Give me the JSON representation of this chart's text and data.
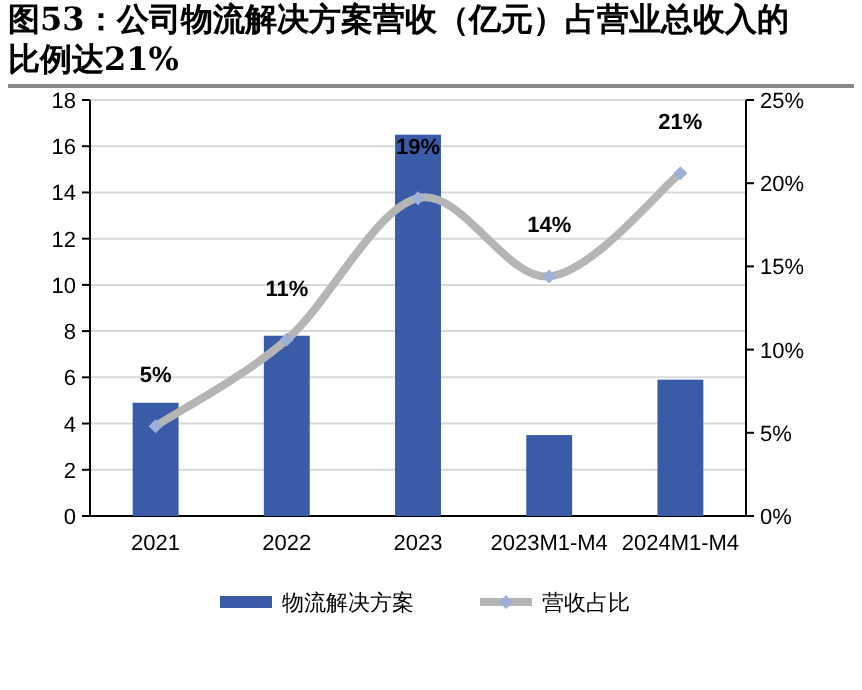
{
  "chart_data": {
    "type": "bar",
    "title": "图53：公司物流解决方案营收（亿元）占营业总收入的比例达21%",
    "categories": [
      "2021",
      "2022",
      "2023",
      "2023M1-M4",
      "2024M1-M4"
    ],
    "series": [
      {
        "name": "物流解决方案",
        "color": "#3a5ca8",
        "values": [
          4.9,
          7.8,
          16.5,
          3.5,
          5.9
        ]
      },
      {
        "name": "营收占比",
        "type": "line",
        "axis": "y2",
        "color": "#b5b5b5",
        "marker": "diamond",
        "values": [
          5.4,
          10.6,
          19.1,
          14.4,
          20.6
        ],
        "value_labels": [
          "5%",
          "11%",
          "19%",
          "14%",
          "21%"
        ]
      }
    ],
    "ylim": [
      0,
      18
    ],
    "yticks": [
      0,
      2,
      4,
      6,
      8,
      10,
      12,
      14,
      16,
      18
    ],
    "y2lim": [
      0,
      25
    ],
    "y2ticks": [
      {
        "value": 0,
        "label": "0%"
      },
      {
        "value": 5,
        "label": "5%"
      },
      {
        "value": 10,
        "label": "10%"
      },
      {
        "value": 15,
        "label": "15%"
      },
      {
        "value": 20,
        "label": "20%"
      },
      {
        "value": 25,
        "label": "25%"
      }
    ],
    "grid": "y",
    "legend": "bottom"
  }
}
